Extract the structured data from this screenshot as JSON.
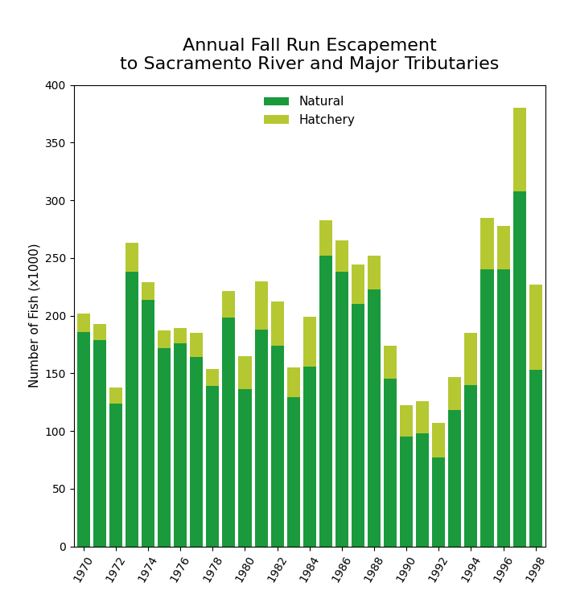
{
  "chart_data": {
    "type": "bar",
    "stacked": true,
    "title": "Annual Fall Run Escapement\nto Sacramento River and Major Tributaries",
    "y_label": "Number of Fish (x1000)",
    "categories": [
      "1970",
      null,
      "1972",
      null,
      "1974",
      null,
      "1976",
      null,
      "1978",
      null,
      "1980",
      null,
      "1982",
      null,
      "1984",
      null,
      "1986",
      null,
      "1988",
      null,
      "1990",
      null,
      "1992",
      null,
      "1994",
      null,
      "1996",
      null,
      "1998"
    ],
    "series": [
      {
        "name": "Natural",
        "color": "#1a9a3c",
        "values": [
          186,
          179,
          124,
          238,
          214,
          172,
          176,
          164,
          139,
          198,
          136,
          188,
          174,
          129,
          156,
          252,
          238,
          210,
          223,
          145,
          95,
          98,
          77,
          118,
          140,
          240,
          240,
          308,
          153
        ]
      },
      {
        "name": "Hatchery",
        "color": "#b5c832",
        "values": [
          16,
          14,
          14,
          25,
          15,
          15,
          13,
          21,
          15,
          23,
          29,
          42,
          38,
          26,
          43,
          31,
          27,
          34,
          29,
          29,
          27,
          28,
          30,
          29,
          45,
          45,
          38,
          72,
          74
        ]
      }
    ],
    "ylim": [
      0,
      400
    ],
    "yticks": [
      0,
      50,
      100,
      150,
      200,
      250,
      300,
      350,
      400
    ],
    "grid": false,
    "legend": "upper center"
  }
}
